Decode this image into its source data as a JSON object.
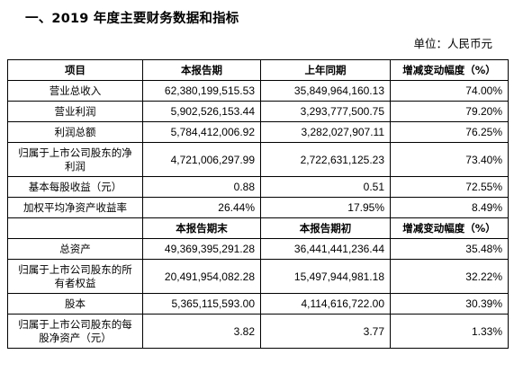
{
  "doc": {
    "title": "一、2019 年度主要财务数据和指标",
    "unit": "单位：人民币元"
  },
  "table": {
    "header1": [
      "项目",
      "本报告期",
      "上年同期",
      "增减变动幅度（%）"
    ],
    "section1": [
      [
        "营业总收入",
        "62,380,199,515.53",
        "35,849,964,160.13",
        "74.00%"
      ],
      [
        "营业利润",
        "5,902,526,153.44",
        "3,293,777,500.75",
        "79.20%"
      ],
      [
        "利润总额",
        "5,784,412,006.92",
        "3,282,027,907.11",
        "76.25%"
      ],
      [
        "归属于上市公司股东的净利润",
        "4,721,006,297.99",
        "2,722,631,125.23",
        "73.40%"
      ],
      [
        "基本每股收益（元）",
        "0.88",
        "0.51",
        "72.55%"
      ],
      [
        "加权平均净资产收益率",
        "26.44%",
        "17.95%",
        "8.49%"
      ]
    ],
    "header2": [
      "",
      "本报告期末",
      "本报告期初",
      "增减变动幅度（%）"
    ],
    "section2": [
      [
        "总资产",
        "49,369,395,291.28",
        "36,441,441,236.44",
        "35.48%"
      ],
      [
        "归属于上市公司股东的所有者权益",
        "20,491,954,082.28",
        "15,497,944,981.18",
        "32.22%"
      ],
      [
        "股本",
        "5,365,115,593.00",
        "4,114,616,722.00",
        "30.39%"
      ],
      [
        "归属于上市公司股东的每股净资产（元）",
        "3.82",
        "3.77",
        "1.33%"
      ]
    ]
  }
}
